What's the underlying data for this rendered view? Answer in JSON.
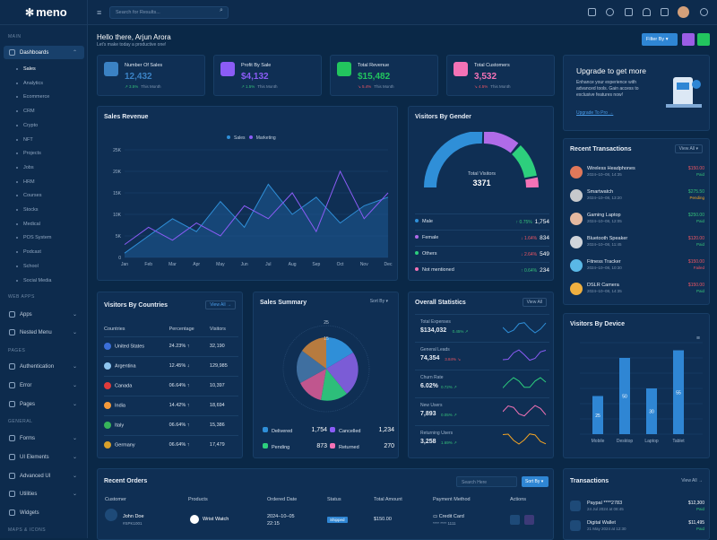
{
  "brand": {
    "name": "meno"
  },
  "search": {
    "placeholder": "Search for Results..."
  },
  "header": {
    "greeting": "Hello there, Arjun Arora",
    "subtitle": "Let's make today a productive one!",
    "filter_label": "Filter By"
  },
  "sidebar": {
    "sections": [
      "MAIN",
      "WEB APPS",
      "PAGES",
      "GENERAL",
      "MAPS & ICONS"
    ],
    "dashboards": "Dashboards",
    "sub": [
      "Sales",
      "Analytics",
      "Ecommerce",
      "CRM",
      "Crypto",
      "NFT",
      "Projects",
      "Jobs",
      "HRM",
      "Courses",
      "Stocks",
      "Medical",
      "POS System",
      "Podcast",
      "School",
      "Social Media"
    ],
    "apps": "Apps",
    "nested": "Nested Menu",
    "auth": "Authentication",
    "error": "Error",
    "pages": "Pages",
    "forms": "Forms",
    "ui": "UI Elements",
    "advanced": "Advanced UI",
    "utilities": "Utilities",
    "widgets": "Widgets"
  },
  "stats": [
    {
      "label": "Number Of Sales",
      "value": "12,432",
      "pct": "3.5%",
      "suffix": "This Month",
      "trend": "up",
      "color": "#3b82c4"
    },
    {
      "label": "Profit By Sale",
      "value": "$4,132",
      "pct": "1.5%",
      "suffix": "This Month",
      "trend": "up",
      "color": "#8b5cf6"
    },
    {
      "label": "Total Revenue",
      "value": "$15,482",
      "pct": "5.4%",
      "suffix": "This Month",
      "trend": "down",
      "color": "#22c55e"
    },
    {
      "label": "Total Customers",
      "value": "3,532",
      "pct": "4.5%",
      "suffix": "This Month",
      "trend": "down",
      "color": "#f472b6"
    }
  ],
  "upgrade": {
    "title": "Upgrade to get more",
    "text": "Enhance your experience with advanced tools. Gain access to exclusive features now!",
    "link": "Upgrade To Pro"
  },
  "sales_revenue": {
    "title": "Sales Revenue"
  },
  "chart_data": {
    "type": "line",
    "title": "Sales Revenue",
    "x": [
      "Jan",
      "Feb",
      "Mar",
      "Apr",
      "May",
      "Jun",
      "Jul",
      "Aug",
      "Sep",
      "Oct",
      "Nov",
      "Dec"
    ],
    "yticks": [
      "0",
      "5K",
      "10K",
      "15K",
      "20K",
      "25K"
    ],
    "ylim": [
      0,
      25000
    ],
    "series": [
      {
        "name": "Sales",
        "color": "#8b5cf6",
        "values": [
          3000,
          7000,
          4000,
          8000,
          5000,
          12000,
          9000,
          15000,
          6000,
          20000,
          9000,
          15000
        ]
      },
      {
        "name": "Marketing",
        "color": "#2f8fd8",
        "values": [
          1000,
          5000,
          9000,
          6000,
          13000,
          7000,
          17000,
          10000,
          14000,
          8000,
          12000,
          14000
        ]
      }
    ]
  },
  "gender": {
    "title": "Visitors By Gender",
    "center_label": "Total Visitors",
    "center_value": "3371",
    "rows": [
      {
        "name": "Male",
        "pct": "0.75%",
        "val": "1,754",
        "trend": "up",
        "color": "#2f8fd8"
      },
      {
        "name": "Female",
        "pct": "1.64%",
        "val": "834",
        "trend": "down",
        "color": "#b06be8"
      },
      {
        "name": "Others",
        "pct": "2.64%",
        "val": "549",
        "trend": "down",
        "color": "#2dcf7d"
      },
      {
        "name": "Not mentioned",
        "pct": "0.64%",
        "val": "234",
        "trend": "up",
        "color": "#f472b6"
      }
    ]
  },
  "transactions_recent": {
    "title": "Recent Transactions",
    "view": "View All",
    "items": [
      {
        "name": "Wireless Headphones",
        "date": "2024–10–08, 14:35",
        "amount": "$150.00",
        "status": "Paid",
        "sc": "#36c07a",
        "ac": "#f05663"
      },
      {
        "name": "Smartwatch",
        "date": "2024–10–08, 13:20",
        "amount": "$275.50",
        "status": "Pending",
        "sc": "#f5a524",
        "ac": "#36c07a"
      },
      {
        "name": "Gaming Laptop",
        "date": "2024–10–08, 12:05",
        "amount": "$250.00",
        "status": "Paid",
        "sc": "#36c07a",
        "ac": "#36c07a"
      },
      {
        "name": "Bluetooth Speaker",
        "date": "2024–10–08, 11:45",
        "amount": "$120.00",
        "status": "Paid",
        "sc": "#36c07a",
        "ac": "#f05663"
      },
      {
        "name": "Fitness Tracker",
        "date": "2024–10–08, 10:30",
        "amount": "$150.00",
        "status": "Failed",
        "sc": "#f05663",
        "ac": "#f05663"
      },
      {
        "name": "DSLR Camera",
        "date": "2024–10–08, 14:35",
        "amount": "$150.00",
        "status": "Paid",
        "sc": "#36c07a",
        "ac": "#f05663"
      }
    ]
  },
  "countries": {
    "title": "Visitors By Countries",
    "view": "View All",
    "headers": [
      "Countries",
      "Percentage",
      "Visitors"
    ],
    "rows": [
      {
        "name": "United States",
        "pct": "24.23%",
        "v": "32,190",
        "trend": "up",
        "color": "#3b6fd8"
      },
      {
        "name": "Argentina",
        "pct": "12.45%",
        "v": "129,985",
        "trend": "down",
        "color": "#8ec5ef"
      },
      {
        "name": "Canada",
        "pct": "06.64%",
        "v": "10,397",
        "trend": "up",
        "color": "#e03b3b"
      },
      {
        "name": "India",
        "pct": "14.42%",
        "v": "18,694",
        "trend": "up",
        "color": "#f59a3a"
      },
      {
        "name": "Italy",
        "pct": "06.64%",
        "v": "15,386",
        "trend": "up",
        "color": "#37b45a"
      },
      {
        "name": "Germany",
        "pct": "06.64%",
        "v": "17,479",
        "trend": "up",
        "color": "#d8a02a"
      }
    ]
  },
  "summary": {
    "title": "Sales Summary",
    "sort": "Sort By",
    "rings": [
      "25",
      "15"
    ],
    "items": [
      {
        "name": "Delivered",
        "v": "1,754"
      },
      {
        "name": "Cancelled",
        "v": "1,234"
      },
      {
        "name": "Pending",
        "v": "873"
      },
      {
        "name": "Returned",
        "v": "270"
      }
    ]
  },
  "overall": {
    "title": "Overall Statistics",
    "view": "View All",
    "rows": [
      {
        "name": "Total Expenses",
        "v": "$134,032",
        "pct": "0.45%",
        "trend": "up",
        "color": "#2f8fd8"
      },
      {
        "name": "General Leads",
        "v": "74,354",
        "pct": "3.84%",
        "trend": "down",
        "color": "#8b5cf6"
      },
      {
        "name": "Churn Rate",
        "v": "6.02%",
        "pct": "0.72%",
        "trend": "up",
        "color": "#2dcf7d"
      },
      {
        "name": "New Users",
        "v": "7,893",
        "pct": "0.05%",
        "trend": "up",
        "color": "#f472b6"
      },
      {
        "name": "Returning Users",
        "v": "3,258",
        "pct": "1.69%",
        "trend": "up",
        "color": "#f5a524"
      }
    ]
  },
  "device": {
    "title": "Visitors By Device",
    "categories": [
      "Mobile",
      "Desktop",
      "Laptop",
      "Tablet"
    ],
    "values": [
      25,
      50,
      30,
      55
    ]
  },
  "orders": {
    "title": "Recent Orders",
    "search": "Search Here",
    "sort": "Sort By",
    "headers": [
      "Customer",
      "Products",
      "Ordered Date",
      "Status",
      "Total Amount",
      "Payment Method",
      "Actions"
    ],
    "row": {
      "name": "John Doe",
      "id": "#SPK1001",
      "product": "Wrist Watch",
      "date": "2024–10–05",
      "time": "22:15",
      "status": "Shipped",
      "amount": "$150.00",
      "method": "Credit Card",
      "card": "**** **** 1111"
    }
  },
  "transactions": {
    "title": "Transactions",
    "view": "View All",
    "items": [
      {
        "name": "Paypal ****2783",
        "date": "24 Jul 2024 at 08:45",
        "amount": "$12,300",
        "status": "Paid"
      },
      {
        "name": "Digital Wallet",
        "date": "21 May 2024 at 12:30",
        "amount": "$11,495",
        "status": "Paid"
      }
    ]
  }
}
